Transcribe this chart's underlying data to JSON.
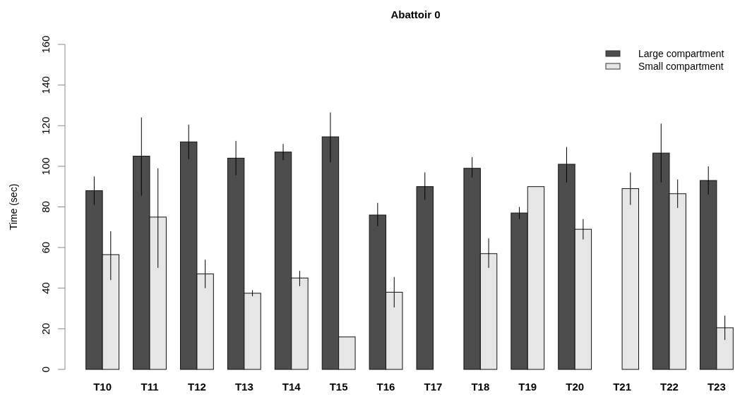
{
  "chart_data": {
    "type": "bar",
    "title": "Abattoir 0",
    "ylabel": "Time (sec)",
    "categories": [
      "T10",
      "T11",
      "T12",
      "T13",
      "T14",
      "T15",
      "T16",
      "T17",
      "T18",
      "T19",
      "T20",
      "T21",
      "T22",
      "T23"
    ],
    "series": [
      {
        "name": "Large compartment",
        "color": "#4d4d4d",
        "values": [
          88,
          105,
          112,
          104,
          107,
          114.5,
          76,
          90,
          99,
          77,
          101,
          null,
          106.5,
          93
        ],
        "errors": [
          [
            81,
            95
          ],
          [
            85.5,
            124
          ],
          [
            103.5,
            120.5
          ],
          [
            95.5,
            112.5
          ],
          [
            103,
            111
          ],
          [
            102,
            126.5
          ],
          [
            70.5,
            82
          ],
          [
            83.5,
            97
          ],
          [
            94.5,
            104.5
          ],
          [
            74,
            80
          ],
          [
            92,
            109.5
          ],
          null,
          [
            92,
            121
          ],
          [
            86,
            100
          ]
        ]
      },
      {
        "name": "Small compartment",
        "color": "#e6e6e6",
        "values": [
          56.5,
          75,
          47,
          37.5,
          45,
          16,
          38,
          null,
          57,
          90,
          69,
          89,
          86.5,
          20.5
        ],
        "errors": [
          [
            44,
            68
          ],
          [
            50,
            99
          ],
          [
            40,
            54
          ],
          [
            36,
            39
          ],
          [
            41,
            48.5
          ],
          null,
          [
            30.5,
            45.5
          ],
          null,
          [
            50,
            64.5
          ],
          null,
          [
            64,
            74
          ],
          [
            81,
            97
          ],
          [
            79.5,
            93.5
          ],
          [
            14.5,
            26.5
          ]
        ]
      }
    ],
    "ylim": [
      0,
      160
    ],
    "yticks": [
      0,
      20,
      40,
      60,
      80,
      100,
      120,
      140,
      160
    ],
    "grid": false,
    "legend": "top right"
  }
}
